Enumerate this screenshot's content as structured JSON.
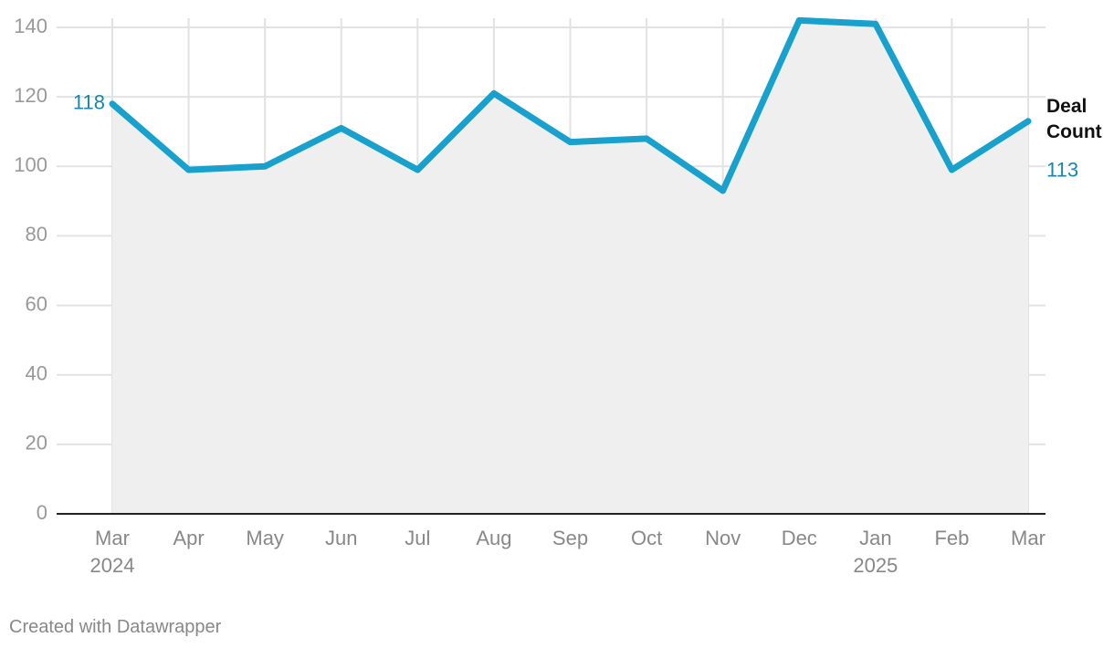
{
  "chart_data": {
    "type": "line",
    "categories": [
      "Mar 2024",
      "Apr",
      "May",
      "Jun",
      "Jul",
      "Aug",
      "Sep",
      "Oct",
      "Nov",
      "Dec",
      "Jan 2025",
      "Feb",
      "Mar"
    ],
    "series": [
      {
        "name": "Deal Count",
        "color": "#18a1cd",
        "values": [
          118,
          99,
          100,
          111,
          99,
          121,
          107,
          108,
          93,
          142,
          141,
          99,
          113
        ]
      }
    ],
    "ylim": [
      0,
      140
    ],
    "yticks": [
      0,
      20,
      40,
      60,
      80,
      100,
      120,
      140
    ],
    "grid": true,
    "area": true
  },
  "footer": "Created with Datawrapper"
}
